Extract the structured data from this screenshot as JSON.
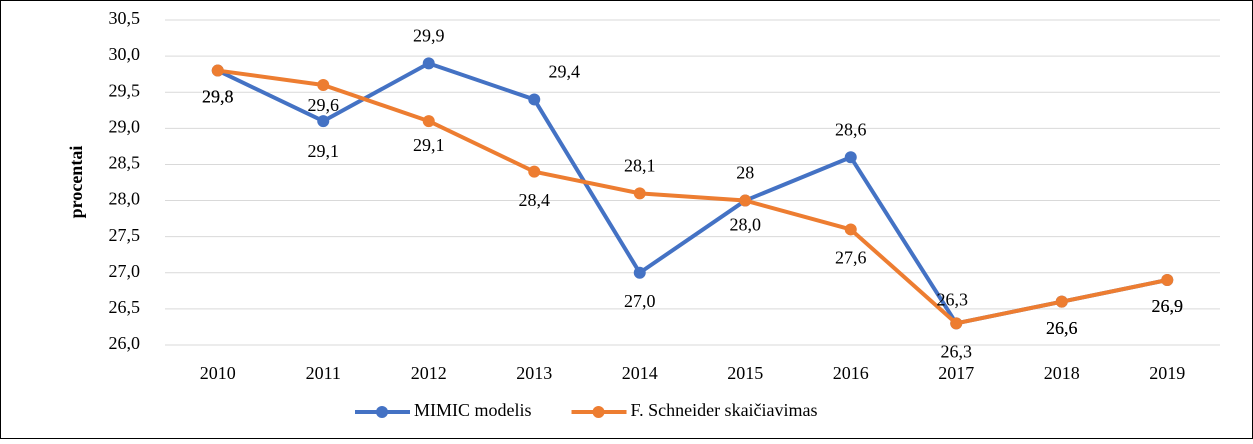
{
  "chart_data": {
    "type": "line",
    "ylabel": "procentai",
    "categories": [
      "2010",
      "2011",
      "2012",
      "2013",
      "2014",
      "2015",
      "2016",
      "2017",
      "2018",
      "2019"
    ],
    "series": [
      {
        "name": "MIMIC modelis",
        "color": "#4472c4",
        "values": [
          29.8,
          29.1,
          29.9,
          29.4,
          27.0,
          28.0,
          28.6,
          26.3,
          26.6,
          26.9
        ],
        "value_labels": [
          "29,8",
          "29,1",
          "29,9",
          "29,4",
          "27,0",
          "28",
          "28,6",
          "26,3",
          "26,6",
          "26,9"
        ]
      },
      {
        "name": "F. Schneider skaičiavimas",
        "color": "#ed7d31",
        "values": [
          29.8,
          29.6,
          29.1,
          28.4,
          28.1,
          28.0,
          27.6,
          26.3,
          26.6,
          26.9
        ],
        "value_labels": [
          "29,8",
          "29,6",
          "29,1",
          "28,4",
          "28,1",
          "28,0",
          "27,6",
          "26,3",
          "26,6",
          "26,9"
        ]
      }
    ],
    "ylim": [
      26.0,
      30.5
    ],
    "yticks": [
      {
        "value": 26.0,
        "label": "26,0"
      },
      {
        "value": 26.5,
        "label": "26,5"
      },
      {
        "value": 27.0,
        "label": "27,0"
      },
      {
        "value": 27.5,
        "label": "27,5"
      },
      {
        "value": 28.0,
        "label": "28,0"
      },
      {
        "value": 28.5,
        "label": "28,5"
      },
      {
        "value": 29.0,
        "label": "29,0"
      },
      {
        "value": 29.5,
        "label": "29,5"
      },
      {
        "value": 30.0,
        "label": "30,0"
      },
      {
        "value": 30.5,
        "label": "30,5"
      }
    ],
    "grid": true,
    "legend": "bottom"
  }
}
